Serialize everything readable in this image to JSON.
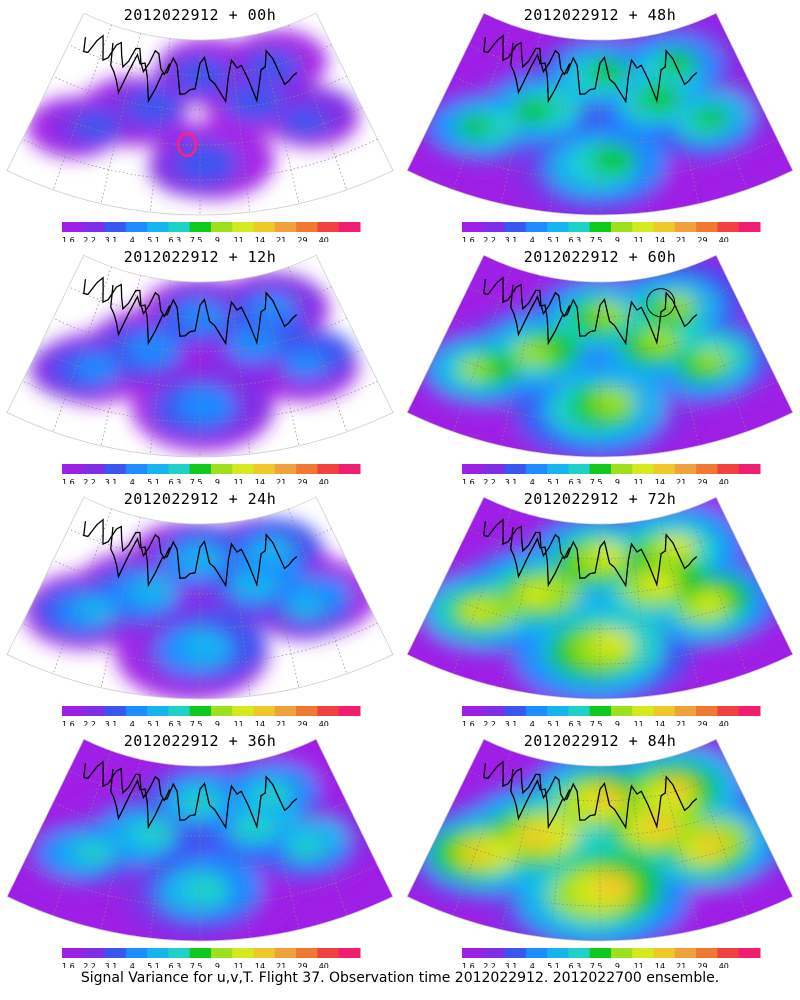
{
  "figure": {
    "footer": "Signal Variance for u,v,T. Flight 37. Observation time 2012022912. 2012022700 ensemble."
  },
  "colors": {
    "colorbar": [
      "#9f1fe6",
      "#7f2ee6",
      "#3a56f0",
      "#1e8cff",
      "#16b4f0",
      "#1ed2c8",
      "#10c81e",
      "#9ee01e",
      "#d6e81e",
      "#f0c828",
      "#f0a03c",
      "#f07830",
      "#f04040",
      "#f01e6e"
    ]
  },
  "chart_data": [
    {
      "type": "heatmap",
      "title": "2012022912 + 00h",
      "forecast_hour": "00h",
      "intensity": 0.1,
      "ticks": [
        "1.6",
        "2.2",
        "3.1",
        "4",
        "5.1",
        "6.3",
        "7.5",
        "9",
        "11",
        "14",
        "21",
        "29",
        "40"
      ]
    },
    {
      "type": "heatmap",
      "title": "2012022912 + 48h",
      "forecast_hour": "48h",
      "intensity": 0.42,
      "ticks": [
        "1.6",
        "2.2",
        "3.1",
        "4",
        "5.1",
        "6.3",
        "7.5",
        "9",
        "11",
        "14",
        "21",
        "29",
        "40"
      ]
    },
    {
      "type": "heatmap",
      "title": "2012022912 + 12h",
      "forecast_hour": "12h",
      "intensity": 0.22,
      "ticks": [
        "1.6",
        "2.2",
        "3.1",
        "4",
        "5.1",
        "6.3",
        "7.5",
        "9",
        "11",
        "14",
        "21",
        "29",
        "40"
      ]
    },
    {
      "type": "heatmap",
      "title": "2012022912 + 60h",
      "forecast_hour": "60h",
      "intensity": 0.52,
      "ticks": [
        "1.6",
        "2.2",
        "3.1",
        "4",
        "5.1",
        "6.3",
        "7.5",
        "9",
        "11",
        "14",
        "21",
        "29",
        "40"
      ]
    },
    {
      "type": "heatmap",
      "title": "2012022912 + 24h",
      "forecast_hour": "24h",
      "intensity": 0.28,
      "ticks": [
        "1.6",
        "2.2",
        "3.1",
        "4",
        "5.1",
        "6.3",
        "7.5",
        "9",
        "11",
        "14",
        "21",
        "29",
        "40"
      ]
    },
    {
      "type": "heatmap",
      "title": "2012022912 + 72h",
      "forecast_hour": "72h",
      "intensity": 0.62,
      "ticks": [
        "1.6",
        "2.2",
        "3.1",
        "4",
        "5.1",
        "6.3",
        "7.5",
        "9",
        "11",
        "14",
        "21",
        "29",
        "40"
      ]
    },
    {
      "type": "heatmap",
      "title": "2012022912 + 36h",
      "forecast_hour": "36h",
      "intensity": 0.36,
      "ticks": [
        "1.6",
        "2.2",
        "3.1",
        "4",
        "5.1",
        "6.3",
        "7.5",
        "9",
        "11",
        "14",
        "21",
        "29",
        "40"
      ]
    },
    {
      "type": "heatmap",
      "title": "2012022912 + 84h",
      "forecast_hour": "84h",
      "intensity": 0.7,
      "ticks": [
        "1.6",
        "2.2",
        "3.1",
        "4",
        "5.1",
        "6.3",
        "7.5",
        "9",
        "11",
        "14",
        "21",
        "29",
        "40"
      ]
    }
  ]
}
